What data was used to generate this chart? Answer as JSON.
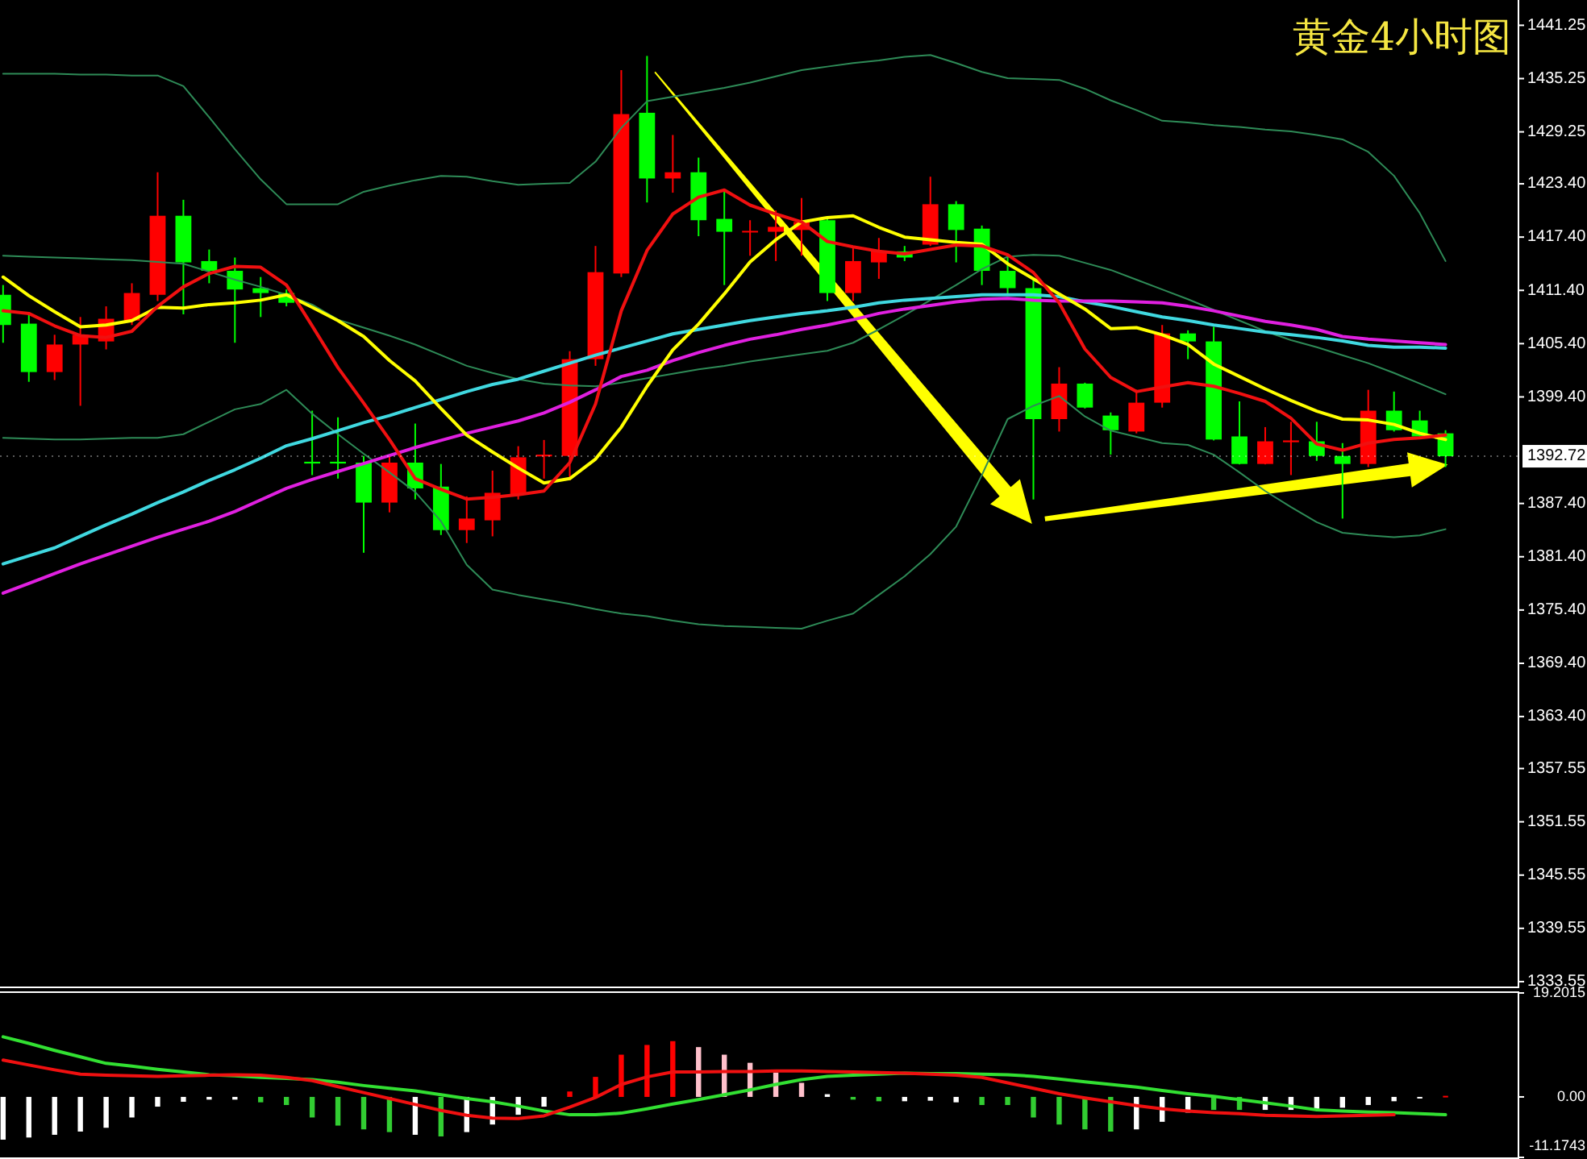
{
  "chart_data": [
    {
      "type": "candlestick",
      "title": "黄金4小时图",
      "tick_labels": "y",
      "grid": false,
      "categories": [
        null,
        null,
        null,
        null,
        null,
        null,
        null,
        null,
        null,
        null,
        null,
        null,
        null,
        null,
        null,
        null,
        null,
        null,
        null,
        null,
        null,
        null,
        null,
        null,
        null,
        null,
        null,
        null,
        null,
        null,
        null,
        null,
        null,
        null,
        null,
        null,
        null,
        null,
        null,
        null,
        null,
        null,
        null,
        null,
        null,
        null,
        null,
        null,
        null,
        null,
        null,
        null,
        null,
        null,
        null,
        null,
        null
      ],
      "ohlc": [
        [
          1410.9,
          1412.0,
          1405.5,
          1407.5
        ],
        [
          1407.65,
          1408.7,
          1401.1,
          1402.2
        ],
        [
          1402.2,
          1406.4,
          1401.3,
          1405.3
        ],
        [
          1405.3,
          1408.4,
          1398.4,
          1406.4
        ],
        [
          1405.65,
          1409.6,
          1404.75,
          1408.2
        ],
        [
          1408.0,
          1412.2,
          1407.5,
          1411.1
        ],
        [
          1410.9,
          1424.7,
          1410.2,
          1419.8
        ],
        [
          1419.8,
          1421.6,
          1408.7,
          1414.55
        ],
        [
          1414.7,
          1416.0,
          1412.2,
          1413.6
        ],
        [
          1413.6,
          1415.1,
          1405.5,
          1411.5
        ],
        [
          1411.65,
          1412.9,
          1408.4,
          1411.1
        ],
        [
          1411.1,
          1411.5,
          1409.6,
          1410.0
        ],
        [
          1392.1,
          1397.85,
          1390.6,
          1391.9
        ],
        [
          1392.1,
          1397.1,
          1390.2,
          1391.9
        ],
        [
          1392.0,
          1392.75,
          1381.85,
          1387.5
        ],
        [
          1387.5,
          1392.75,
          1386.4,
          1392.0
        ],
        [
          1392.0,
          1396.4,
          1387.85,
          1389.1
        ],
        [
          1389.3,
          1391.85,
          1383.85,
          1384.4
        ],
        [
          1384.4,
          1388.2,
          1382.95,
          1385.7
        ],
        [
          1385.5,
          1391.1,
          1383.7,
          1388.6
        ],
        [
          1388.4,
          1393.85,
          1387.85,
          1392.6
        ],
        [
          1392.7,
          1394.55,
          1390.2,
          1392.9
        ],
        [
          1392.75,
          1404.55,
          1390.0,
          1403.65
        ],
        [
          1403.65,
          1416.4,
          1402.9,
          1413.45
        ],
        [
          1413.3,
          1436.2,
          1412.9,
          1431.25
        ],
        [
          1431.4,
          1437.8,
          1421.3,
          1424.0
        ],
        [
          1424.0,
          1428.9,
          1422.4,
          1424.7
        ],
        [
          1424.7,
          1426.35,
          1417.5,
          1419.3
        ],
        [
          1419.45,
          1422.55,
          1412.0,
          1418.0
        ],
        [
          1418.0,
          1419.3,
          1415.3,
          1418.1
        ],
        [
          1418.0,
          1420.4,
          1414.7,
          1418.55
        ],
        [
          1418.2,
          1421.8,
          1415.3,
          1419.1
        ],
        [
          1419.3,
          1419.65,
          1410.2,
          1411.1
        ],
        [
          1411.1,
          1416.4,
          1410.2,
          1414.7
        ],
        [
          1414.55,
          1417.3,
          1412.7,
          1415.8
        ],
        [
          1415.8,
          1416.4,
          1414.7,
          1415.1
        ],
        [
          1416.55,
          1424.2,
          1416.4,
          1421.1
        ],
        [
          1421.1,
          1421.45,
          1414.55,
          1418.2
        ],
        [
          1418.35,
          1418.7,
          1412.0,
          1413.6
        ],
        [
          1413.6,
          1415.45,
          1410.9,
          1411.65
        ],
        [
          1411.65,
          1412.7,
          1387.85,
          1396.9
        ],
        [
          1396.9,
          1402.75,
          1395.5,
          1400.9
        ],
        [
          1400.9,
          1401.0,
          1398.1,
          1398.2
        ],
        [
          1397.3,
          1397.65,
          1392.9,
          1395.65
        ],
        [
          1395.5,
          1400.2,
          1395.3,
          1398.75
        ],
        [
          1398.75,
          1407.5,
          1398.2,
          1406.55
        ],
        [
          1406.55,
          1406.9,
          1403.65,
          1405.65
        ],
        [
          1405.65,
          1407.3,
          1394.5,
          1394.6
        ],
        [
          1394.95,
          1398.9,
          1391.8,
          1391.85
        ],
        [
          1391.85,
          1396.0,
          1391.8,
          1394.4
        ],
        [
          1394.3,
          1396.6,
          1390.6,
          1394.5
        ],
        [
          1394.4,
          1396.6,
          1392.2,
          1392.75
        ],
        [
          1392.75,
          1394.2,
          1385.7,
          1391.85
        ],
        [
          1391.85,
          1400.2,
          1391.5,
          1397.85
        ],
        [
          1397.85,
          1400.0,
          1395.5,
          1395.65
        ],
        [
          1396.75,
          1397.85,
          1394.8,
          1394.95
        ],
        [
          1395.3,
          1395.65,
          1391.5,
          1392.72
        ]
      ],
      "colors": [
        "#00ff00",
        "#00ff00",
        "#ff0000",
        "#ff0000",
        "#ff0000",
        "#ff0000",
        "#ff0000",
        "#00ff00",
        "#00ff00",
        "#00ff00",
        "#00ff00",
        "#00ff00",
        "#00ff00",
        "#00ff00",
        "#00ff00",
        "#ff0000",
        "#00ff00",
        "#00ff00",
        "#ff0000",
        "#ff0000",
        "#ff0000",
        "#ff0000",
        "#ff0000",
        "#ff0000",
        "#ff0000",
        "#00ff00",
        "#ff0000",
        "#00ff00",
        "#00ff00",
        "#ff0000",
        "#ff0000",
        "#ff0000",
        "#00ff00",
        "#ff0000",
        "#ff0000",
        "#00ff00",
        "#ff0000",
        "#00ff00",
        "#00ff00",
        "#00ff00",
        "#00ff00",
        "#ff0000",
        "#00ff00",
        "#00ff00",
        "#ff0000",
        "#ff0000",
        "#00ff00",
        "#00ff00",
        "#00ff00",
        "#ff0000",
        "#ff0000",
        "#00ff00",
        "#00ff00",
        "#ff0000",
        "#00ff00",
        "#00ff00",
        "#00ff00"
      ],
      "series": [
        {
          "type": "line",
          "color": "#2e8b57",
          "values": [
            1435.8,
            1435.8,
            1435.8,
            1435.7,
            1435.7,
            1435.6,
            1435.6,
            1434.4,
            1430.9,
            1427.3,
            1423.9,
            1421.1,
            1421.1,
            1421.1,
            1422.5,
            1423.2,
            1423.8,
            1424.3,
            1424.2,
            1423.7,
            1423.3,
            1423.4,
            1423.5,
            1425.9,
            1429.7,
            1432.7,
            1433.2,
            1433.7,
            1434.2,
            1434.8,
            1435.5,
            1436.2,
            1436.6,
            1437.0,
            1437.3,
            1437.7,
            1437.9,
            1437.0,
            1436.0,
            1435.3,
            1435.2,
            1435.1,
            1434.1,
            1432.8,
            1431.7,
            1430.5,
            1430.3,
            1430.0,
            1429.8,
            1429.5,
            1429.3,
            1428.9,
            1428.4,
            1427.0,
            1424.3,
            1420.1,
            1414.7
          ]
        },
        {
          "type": "line",
          "color": "#2e8b57",
          "values": [
            1415.3,
            1415.2,
            1415.1,
            1415.0,
            1414.9,
            1414.8,
            1414.6,
            1414.4,
            1413.5,
            1412.6,
            1411.8,
            1410.9,
            1409.8,
            1408.1,
            1407.2,
            1406.3,
            1405.3,
            1404.1,
            1402.9,
            1402.1,
            1401.4,
            1400.9,
            1400.7,
            1400.6,
            1401.0,
            1401.5,
            1402.0,
            1402.5,
            1402.9,
            1403.4,
            1403.8,
            1404.2,
            1404.6,
            1405.5,
            1407.0,
            1408.6,
            1410.3,
            1412.0,
            1413.8,
            1415.2,
            1415.4,
            1415.3,
            1414.5,
            1413.7,
            1412.6,
            1411.5,
            1410.4,
            1409.2,
            1408.0,
            1406.8,
            1405.8,
            1405.0,
            1404.1,
            1403.2,
            1402.1,
            1400.9,
            1399.7
          ]
        },
        {
          "type": "line",
          "color": "#2e8b57",
          "values": [
            1394.8,
            1394.7,
            1394.6,
            1394.6,
            1394.7,
            1394.8,
            1394.8,
            1395.2,
            1396.6,
            1398.0,
            1398.6,
            1400.2,
            1397.5,
            1395.2,
            1393.0,
            1390.9,
            1388.7,
            1385.4,
            1380.5,
            1377.7,
            1377.1,
            1376.6,
            1376.1,
            1375.5,
            1375.0,
            1374.7,
            1374.2,
            1373.8,
            1373.6,
            1373.5,
            1373.4,
            1373.3,
            1374.2,
            1375.0,
            1377.1,
            1379.2,
            1381.7,
            1384.8,
            1390.6,
            1396.9,
            1398.4,
            1399.5,
            1397.2,
            1395.6,
            1394.9,
            1394.2,
            1394.0,
            1392.9,
            1390.9,
            1388.8,
            1387.0,
            1385.3,
            1384.1,
            1383.8,
            1383.6,
            1383.8,
            1384.5
          ]
        },
        {
          "type": "line",
          "color": "#40d8e0",
          "values": [
            1380.6,
            1381.5,
            1382.4,
            1383.7,
            1385.0,
            1386.2,
            1387.5,
            1388.7,
            1390.0,
            1391.2,
            1392.5,
            1393.9,
            1394.7,
            1395.6,
            1396.5,
            1397.3,
            1398.2,
            1399.1,
            1400.0,
            1400.8,
            1401.4,
            1402.3,
            1403.2,
            1404.1,
            1404.9,
            1405.7,
            1406.5,
            1407.0,
            1407.5,
            1408.0,
            1408.4,
            1408.8,
            1409.1,
            1409.5,
            1410.0,
            1410.3,
            1410.5,
            1410.7,
            1410.9,
            1410.9,
            1410.9,
            1410.7,
            1410.1,
            1409.6,
            1409.0,
            1408.4,
            1408.0,
            1407.5,
            1407.1,
            1406.7,
            1406.4,
            1406.1,
            1405.7,
            1405.2,
            1405.0,
            1405.0,
            1404.9
          ]
        },
        {
          "type": "line",
          "color": "#e020e0",
          "values": [
            1377.3,
            1378.4,
            1379.5,
            1380.6,
            1381.6,
            1382.6,
            1383.6,
            1384.5,
            1385.4,
            1386.5,
            1387.8,
            1389.1,
            1390.1,
            1391.0,
            1391.9,
            1392.8,
            1393.7,
            1394.5,
            1395.3,
            1396.0,
            1396.7,
            1397.6,
            1398.8,
            1400.2,
            1401.7,
            1402.4,
            1403.5,
            1404.4,
            1405.2,
            1405.9,
            1406.4,
            1407.0,
            1407.5,
            1408.1,
            1408.8,
            1409.3,
            1409.7,
            1410.1,
            1410.4,
            1410.5,
            1410.3,
            1410.2,
            1410.2,
            1410.2,
            1410.1,
            1410.0,
            1409.6,
            1409.1,
            1408.5,
            1407.9,
            1407.5,
            1407.0,
            1406.2,
            1405.9,
            1405.7,
            1405.5,
            1405.3
          ]
        },
        {
          "type": "line",
          "color": "#ffff00",
          "values": [
            1412.9,
            1410.8,
            1409.0,
            1407.3,
            1407.5,
            1408.0,
            1409.5,
            1409.4,
            1409.8,
            1410.0,
            1410.3,
            1410.9,
            1409.5,
            1408.0,
            1406.2,
            1403.5,
            1401.2,
            1398.1,
            1395.1,
            1393.2,
            1391.4,
            1389.7,
            1390.2,
            1392.4,
            1396.0,
            1400.6,
            1404.7,
            1407.6,
            1411.0,
            1414.6,
            1417.1,
            1419.1,
            1419.6,
            1419.8,
            1418.5,
            1417.4,
            1417.1,
            1416.8,
            1416.6,
            1414.4,
            1412.7,
            1411.0,
            1409.3,
            1407.1,
            1407.2,
            1406.4,
            1405.3,
            1403.1,
            1401.7,
            1400.3,
            1399.0,
            1397.8,
            1396.9,
            1396.8,
            1396.3,
            1395.3,
            1394.6
          ]
        },
        {
          "type": "line",
          "color": "#f01010",
          "values": [
            1409.1,
            1408.8,
            1407.4,
            1406.3,
            1406.1,
            1406.8,
            1409.6,
            1411.8,
            1413.3,
            1414.1,
            1414.0,
            1412.0,
            1407.4,
            1402.7,
            1398.7,
            1394.6,
            1390.2,
            1389.0,
            1387.9,
            1388.1,
            1388.4,
            1388.8,
            1392.0,
            1398.6,
            1409.1,
            1415.9,
            1420.0,
            1421.9,
            1422.7,
            1421.0,
            1420.0,
            1419.1,
            1416.9,
            1416.3,
            1415.8,
            1415.5,
            1416.0,
            1416.5,
            1416.4,
            1415.4,
            1413.4,
            1410.0,
            1404.8,
            1401.6,
            1400.0,
            1400.5,
            1401.0,
            1400.6,
            1399.8,
            1398.9,
            1397.0,
            1394.1,
            1393.4,
            1394.2,
            1394.6,
            1394.8,
            1395.1
          ]
        }
      ],
      "ylim": [
        1333.0,
        1444.1
      ],
      "yticks": [
        1441.25,
        1435.25,
        1429.25,
        {
          "value": 1423.4,
          "label": "1423.40"
        },
        {
          "value": 1417.4,
          "label": "1417.40"
        },
        {
          "value": 1411.4,
          "label": "1411.40"
        },
        {
          "value": 1405.4,
          "label": "1405.40"
        },
        {
          "value": 1399.4,
          "label": "1399.40"
        },
        {
          "value": 1387.4,
          "label": "1387.40"
        },
        {
          "value": 1381.4,
          "label": "1381.40"
        },
        {
          "value": 1375.4,
          "label": "1375.40"
        },
        {
          "value": 1369.4,
          "label": "1369.40"
        },
        {
          "value": 1363.4,
          "label": "1363.40"
        },
        1357.55,
        1351.55,
        1345.55,
        1339.55,
        1333.55
      ],
      "ref_lines": [
        {
          "axis": "y",
          "value": 1392.72,
          "label": "1392.72",
          "color": "#ffffff"
        }
      ]
    },
    {
      "type": "bar",
      "tick_labels": "y",
      "grid": false,
      "categories": [
        null,
        null,
        null,
        null,
        null,
        null,
        null,
        null,
        null,
        null,
        null,
        null,
        null,
        null,
        null,
        null,
        null,
        null,
        null,
        null,
        null,
        null,
        null,
        null,
        null,
        null,
        null,
        null,
        null,
        null,
        null,
        null,
        null,
        null,
        null,
        null,
        null,
        null,
        null,
        null,
        null,
        null,
        null,
        null,
        null,
        null,
        null,
        null,
        null,
        null,
        null,
        null,
        null,
        null,
        null,
        null,
        null
      ],
      "series": [
        {
          "type": "bar",
          "values": [
            -7.9,
            -7.5,
            -7.0,
            -6.4,
            -5.7,
            -3.8,
            -1.8,
            -0.9,
            -0.5,
            -0.5,
            -1.0,
            -1.5,
            -3.8,
            -5.3,
            -6.0,
            -6.5,
            -7.0,
            -7.3,
            -6.5,
            -5.1,
            -3.3,
            -1.8,
            1.0,
            3.7,
            7.8,
            9.6,
            10.3,
            9.2,
            7.8,
            6.3,
            4.5,
            2.6,
            0.5,
            -0.5,
            -0.8,
            -0.8,
            -0.7,
            -1.0,
            -1.5,
            -1.5,
            -3.8,
            -5.1,
            -6.0,
            -6.4,
            -6.0,
            -4.6,
            -2.9,
            -2.4,
            -2.4,
            -2.4,
            -2.4,
            -2.4,
            -2.0,
            -1.5,
            -0.8,
            -0.3,
            0.2
          ],
          "colors": [
            "#ffffff",
            "#ffffff",
            "#ffffff",
            "#ffffff",
            "#ffffff",
            "#ffffff",
            "#ffffff",
            "#ffffff",
            "#ffffff",
            "#ffffff",
            "#32cd32",
            "#32cd32",
            "#32cd32",
            "#32cd32",
            "#32cd32",
            "#32cd32",
            "#ffffff",
            "#32cd32",
            "#ffffff",
            "#ffffff",
            "#ffffff",
            "#ffffff",
            "#ff0000",
            "#ff0000",
            "#ff0000",
            "#ff0000",
            "#ff0000",
            "#ffc0cb",
            "#ffc0cb",
            "#ffc0cb",
            "#ffc0cb",
            "#ffc0cb",
            "#ffffff",
            "#32cd32",
            "#32cd32",
            "#ffffff",
            "#ffffff",
            "#ffffff",
            "#32cd32",
            "#32cd32",
            "#32cd32",
            "#32cd32",
            "#32cd32",
            "#32cd32",
            "#ffffff",
            "#ffffff",
            "#ffffff",
            "#32cd32",
            "#32cd32",
            "#ffffff",
            "#ffffff",
            "#ffffff",
            "#ffffff",
            "#ffffff",
            "#ffffff",
            "#ffffff",
            "#ff0000"
          ]
        },
        {
          "type": "line",
          "color": "#32e032",
          "values": [
            11.1,
            9.9,
            8.6,
            7.4,
            6.2,
            5.7,
            5.1,
            4.6,
            4.1,
            3.9,
            3.6,
            3.4,
            3.2,
            2.7,
            2.1,
            1.6,
            1.1,
            0.4,
            -0.3,
            -0.9,
            -1.7,
            -2.6,
            -3.3,
            -3.3,
            -3.0,
            -2.2,
            -1.3,
            -0.5,
            0.4,
            1.3,
            2.3,
            3.2,
            3.8,
            4.0,
            4.2,
            4.4,
            4.3,
            4.3,
            4.2,
            4.1,
            3.8,
            3.3,
            2.8,
            2.3,
            1.8,
            1.2,
            0.6,
            0.1,
            -0.5,
            -1.1,
            -1.7,
            -2.4,
            -2.6,
            -2.8,
            -2.9,
            -3.1,
            -3.3
          ]
        },
        {
          "type": "line",
          "color": "#f01010",
          "values": [
            6.8,
            5.9,
            5.0,
            4.2,
            4.0,
            3.9,
            3.8,
            3.9,
            4.0,
            4.1,
            4.0,
            3.6,
            3.0,
            1.9,
            0.8,
            -0.3,
            -1.4,
            -2.5,
            -3.4,
            -3.9,
            -4.0,
            -3.5,
            -1.9,
            -0.1,
            2.3,
            3.7,
            4.6,
            4.6,
            4.7,
            4.7,
            4.8,
            4.8,
            4.7,
            4.6,
            4.5,
            4.4,
            4.2,
            4.0,
            3.6,
            2.6,
            1.6,
            0.6,
            -0.2,
            -0.9,
            -1.6,
            -2.2,
            -2.6,
            -2.9,
            -3.1,
            -3.4,
            -3.5,
            -3.6,
            -3.5,
            -3.4,
            -3.3,
            null,
            null
          ]
        }
      ],
      "ylim": [
        -11.1743,
        19.2015
      ],
      "yticks": [
        19.2015,
        {
          "value": 0,
          "label": "0.00"
        },
        -11.1743
      ]
    }
  ]
}
